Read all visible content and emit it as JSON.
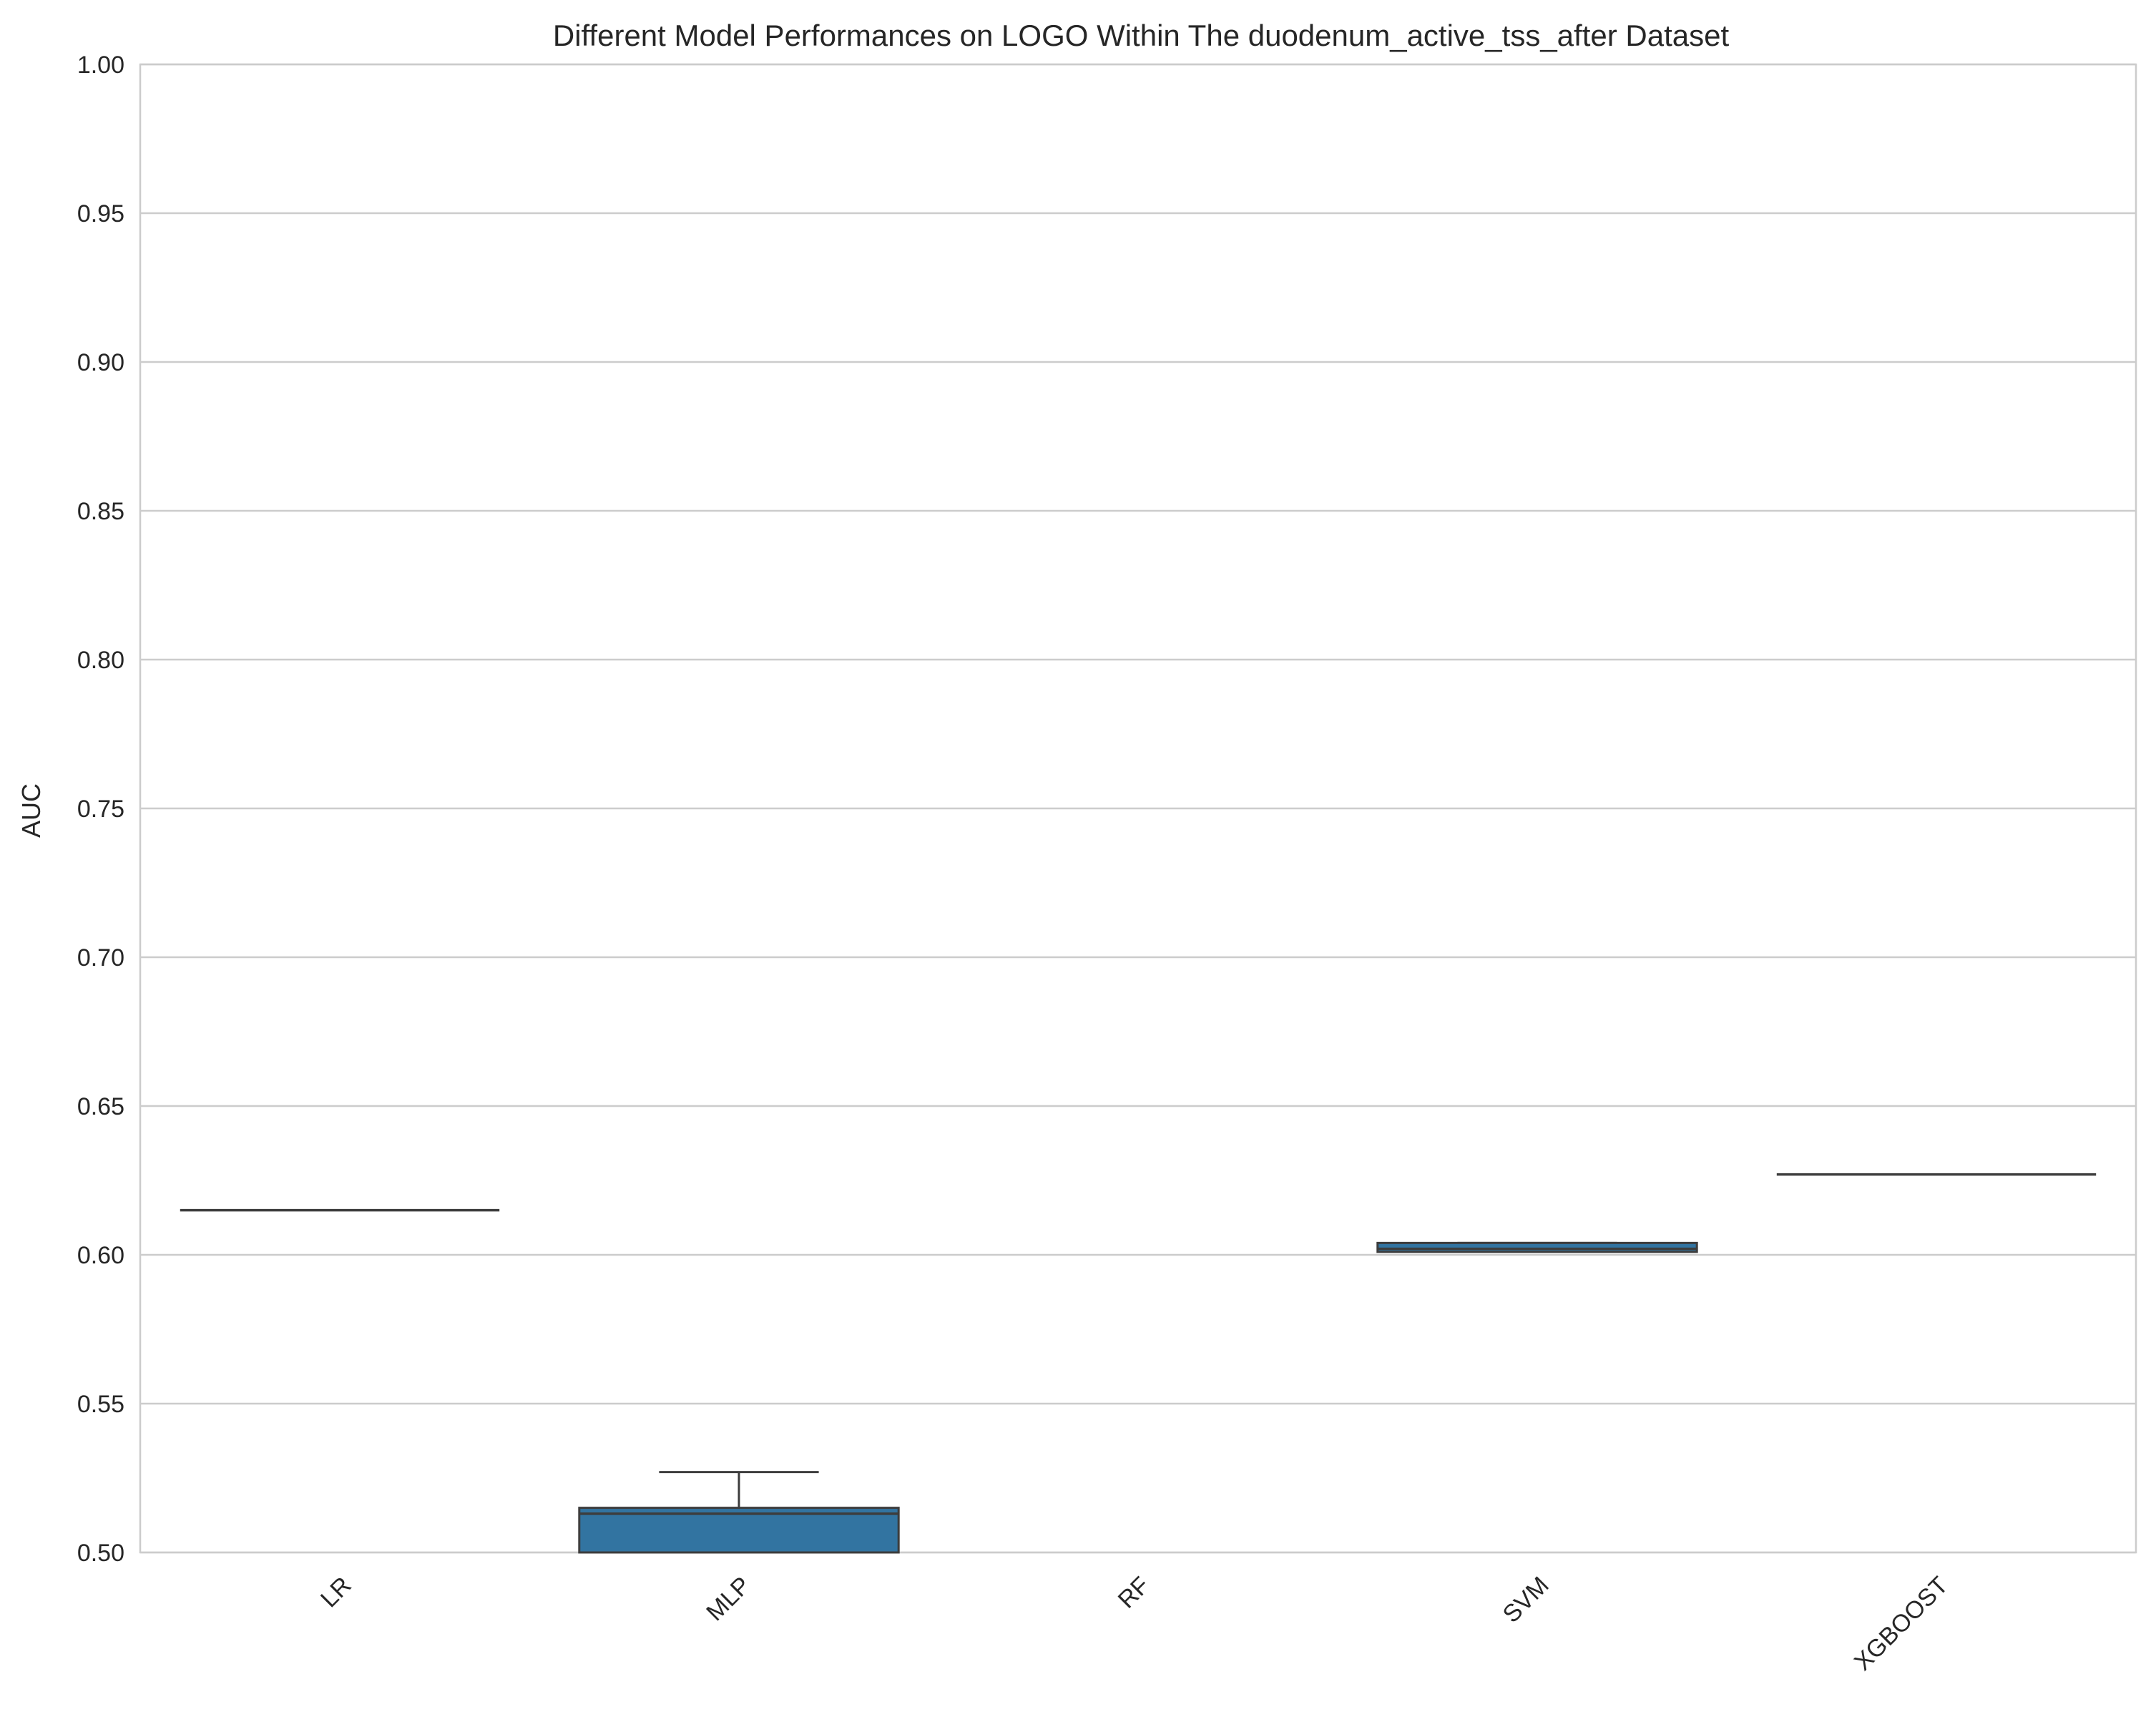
{
  "chart_data": {
    "type": "box",
    "title": "Different Model Performances on LOGO Within The duodenum_active_tss_after Dataset",
    "xlabel": "",
    "ylabel": "AUC",
    "ylim": [
      0.5,
      1.0
    ],
    "yticks": [
      "0.50",
      "0.55",
      "0.60",
      "0.65",
      "0.70",
      "0.75",
      "0.80",
      "0.85",
      "0.90",
      "0.95",
      "1.00"
    ],
    "categories": [
      "LR",
      "MLP",
      "RF",
      "SVM",
      "XGBOOST"
    ],
    "grid": true,
    "boxes": [
      {
        "category": "LR",
        "whisker_low": 0.615,
        "q1": 0.615,
        "median": 0.615,
        "q3": 0.615,
        "whisker_high": 0.615
      },
      {
        "category": "MLP",
        "whisker_low": 0.5,
        "q1": 0.5,
        "median": 0.513,
        "q3": 0.515,
        "whisker_high": 0.527
      },
      {
        "category": "RF",
        "whisker_low": null,
        "q1": null,
        "median": null,
        "q3": null,
        "whisker_high": null
      },
      {
        "category": "SVM",
        "whisker_low": 0.601,
        "q1": 0.601,
        "median": 0.602,
        "q3": 0.604,
        "whisker_high": 0.604
      },
      {
        "category": "XGBOOST",
        "whisker_low": 0.627,
        "q1": 0.627,
        "median": 0.627,
        "q3": 0.627,
        "whisker_high": 0.627
      }
    ],
    "colors": {
      "box_fill": "#3274a1",
      "box_edge": "#3d3d3d",
      "grid": "#cccccc",
      "spine": "#cccccc"
    }
  }
}
